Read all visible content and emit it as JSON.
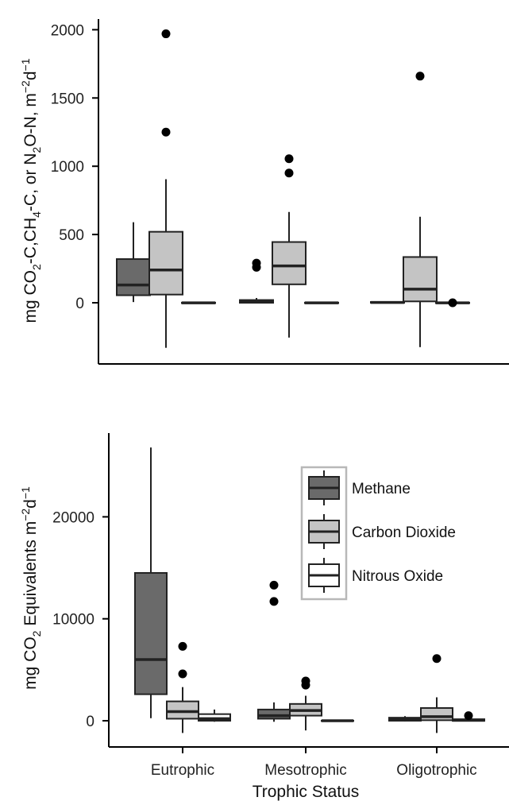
{
  "chart_data": [
    {
      "type": "box",
      "panel": "top",
      "ylabel": "mg CO2-C,CH4-C, or N2O-N, m−2d−1",
      "ylim": [
        -450,
        2050
      ],
      "yticks": [
        0,
        500,
        1000,
        1500,
        2000
      ],
      "categories": [
        "Eutrophic",
        "Mesotrophic",
        "Oligotrophic"
      ],
      "series": [
        {
          "name": "Methane",
          "color": "#6a6a6a",
          "boxes": [
            {
              "category": "Eutrophic",
              "whisker_low": 5,
              "q1": 55,
              "median": 130,
              "q3": 320,
              "whisker_high": 590,
              "outliers": []
            },
            {
              "category": "Mesotrophic",
              "whisker_low": -5,
              "q1": 0,
              "median": 10,
              "q3": 20,
              "whisker_high": 35,
              "outliers": [
                260,
                290
              ]
            },
            {
              "category": "Oligotrophic",
              "whisker_low": -5,
              "q1": 0,
              "median": 2,
              "q3": 6,
              "whisker_high": 10,
              "outliers": []
            }
          ]
        },
        {
          "name": "Carbon Dioxide",
          "color": "#c4c4c4",
          "boxes": [
            {
              "category": "Eutrophic",
              "whisker_low": -330,
              "q1": 60,
              "median": 240,
              "q3": 520,
              "whisker_high": 905,
              "outliers": [
                1250,
                1970
              ]
            },
            {
              "category": "Mesotrophic",
              "whisker_low": -255,
              "q1": 135,
              "median": 270,
              "q3": 445,
              "whisker_high": 665,
              "outliers": [
                950,
                1055
              ]
            },
            {
              "category": "Oligotrophic",
              "whisker_low": -325,
              "q1": 10,
              "median": 100,
              "q3": 335,
              "whisker_high": 630,
              "outliers": [
                1660
              ]
            }
          ]
        },
        {
          "name": "Nitrous Oxide",
          "color": "#ffffff",
          "boxes": [
            {
              "category": "Eutrophic",
              "whisker_low": -6,
              "q1": -3,
              "median": -1,
              "q3": 1,
              "whisker_high": 4,
              "outliers": []
            },
            {
              "category": "Mesotrophic",
              "whisker_low": -6,
              "q1": -3,
              "median": -1,
              "q3": 1,
              "whisker_high": 4,
              "outliers": []
            },
            {
              "category": "Oligotrophic",
              "whisker_low": -6,
              "q1": -3,
              "median": -1,
              "q3": 1,
              "whisker_high": 4,
              "outliers": [
                0
              ]
            }
          ]
        }
      ]
    },
    {
      "type": "box",
      "panel": "bottom",
      "ylabel": "mg CO2 Equivalents m−2d−1",
      "xlabel": "Trophic Status",
      "ylim": [
        -2500,
        28000
      ],
      "yticks": [
        0,
        10000,
        20000
      ],
      "categories": [
        "Eutrophic",
        "Mesotrophic",
        "Oligotrophic"
      ],
      "legend": {
        "position": "top-right",
        "entries": [
          "Methane",
          "Carbon Dioxide",
          "Nitrous Oxide"
        ]
      },
      "series": [
        {
          "name": "Methane",
          "color": "#6a6a6a",
          "boxes": [
            {
              "category": "Eutrophic",
              "whisker_low": 250,
              "q1": 2600,
              "median": 6000,
              "q3": 14500,
              "whisker_high": 26800,
              "outliers": []
            },
            {
              "category": "Mesotrophic",
              "whisker_low": -100,
              "q1": 200,
              "median": 500,
              "q3": 1100,
              "whisker_high": 1800,
              "outliers": [
                11700,
                13300
              ]
            },
            {
              "category": "Oligotrophic",
              "whisker_low": -80,
              "q1": 0,
              "median": 100,
              "q3": 300,
              "whisker_high": 450,
              "outliers": []
            }
          ]
        },
        {
          "name": "Carbon Dioxide",
          "color": "#c4c4c4",
          "boxes": [
            {
              "category": "Eutrophic",
              "whisker_low": -1200,
              "q1": 200,
              "median": 900,
              "q3": 1900,
              "whisker_high": 3300,
              "outliers": [
                4600,
                7300
              ]
            },
            {
              "category": "Mesotrophic",
              "whisker_low": -950,
              "q1": 500,
              "median": 1000,
              "q3": 1650,
              "whisker_high": 2450,
              "outliers": [
                3500,
                3900
              ]
            },
            {
              "category": "Oligotrophic",
              "whisker_low": -1200,
              "q1": 50,
              "median": 400,
              "q3": 1250,
              "whisker_high": 2300,
              "outliers": [
                6100
              ]
            }
          ]
        },
        {
          "name": "Nitrous Oxide",
          "color": "#ffffff",
          "boxes": [
            {
              "category": "Eutrophic",
              "whisker_low": -100,
              "q1": 0,
              "median": 200,
              "q3": 650,
              "whisker_high": 1100,
              "outliers": []
            },
            {
              "category": "Mesotrophic",
              "whisker_low": -30,
              "q1": -10,
              "median": 0,
              "q3": 10,
              "whisker_high": 30,
              "outliers": []
            },
            {
              "category": "Oligotrophic",
              "whisker_low": -40,
              "q1": -10,
              "median": 50,
              "q3": 150,
              "whisker_high": 300,
              "outliers": [
                500
              ]
            }
          ]
        }
      ]
    }
  ]
}
